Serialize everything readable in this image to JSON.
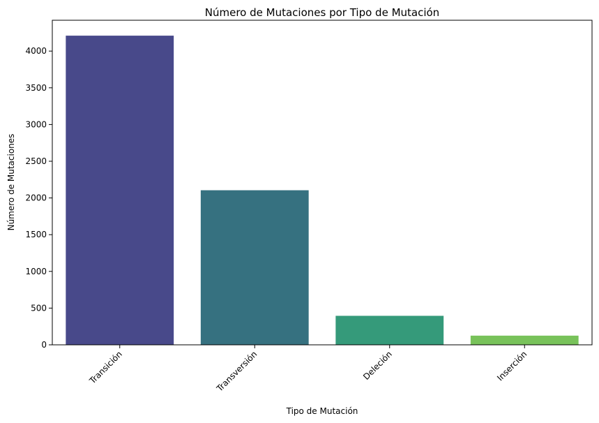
{
  "chart_data": {
    "type": "bar",
    "title": "Número de Mutaciones por Tipo de Mutación",
    "xlabel": "Tipo de Mutación",
    "ylabel": "Número de Mutaciones",
    "categories": [
      "Transición",
      "Transversión",
      "Deleción",
      "Inserción"
    ],
    "values": [
      4210,
      2105,
      395,
      125
    ],
    "ylim": [
      0,
      4420
    ],
    "yticks": [
      0,
      500,
      1000,
      1500,
      2000,
      2500,
      3000,
      3500,
      4000
    ],
    "colors": [
      "#48498a",
      "#367180",
      "#359a7a",
      "#78c25a"
    ],
    "grid": false,
    "legend": "none"
  }
}
